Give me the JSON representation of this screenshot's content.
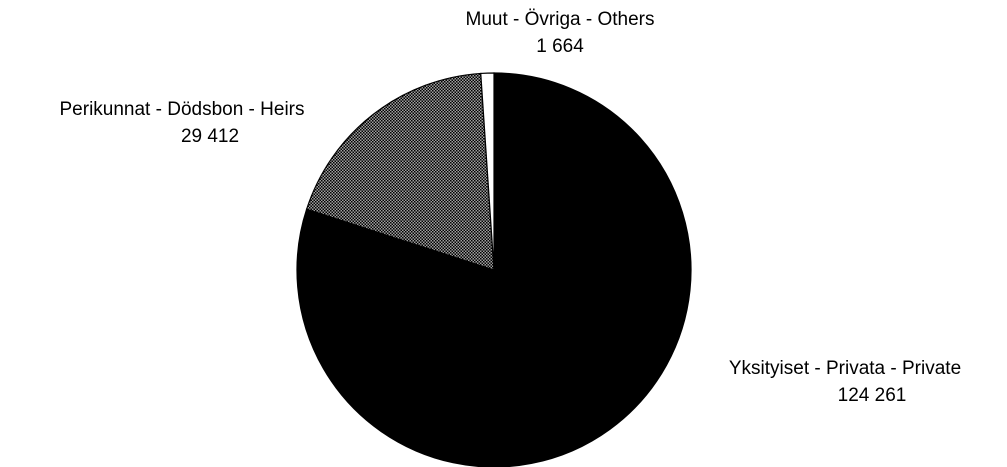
{
  "chart_data": {
    "type": "pie",
    "categories": [
      "Yksityiset - Privata - Private",
      "Perikunnat - Dödsbon - Heirs",
      "Muut - Övriga - Others"
    ],
    "values": [
      124261,
      29412,
      1664
    ],
    "value_labels": [
      "124 261",
      "29 412",
      "1 664"
    ],
    "colors": [
      "#000000",
      "#a0a0a0",
      "#ffffff"
    ]
  }
}
